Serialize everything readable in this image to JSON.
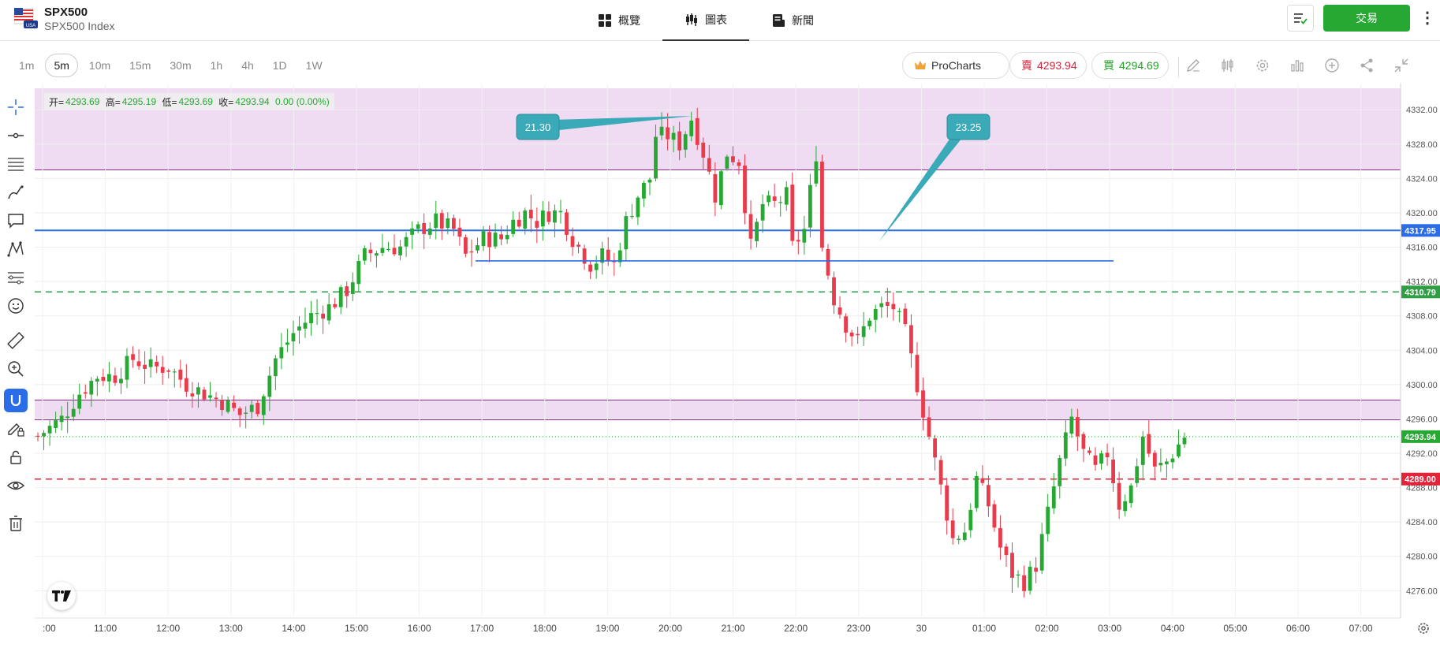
{
  "header": {
    "symbol": "SPX500",
    "symbol_full": "SPX500 Index",
    "logo_badge": "USA",
    "tabs": [
      {
        "label": "概覽",
        "icon": "grid-icon"
      },
      {
        "label": "圖表",
        "icon": "candlestick-icon",
        "active": true
      },
      {
        "label": "新聞",
        "icon": "news-icon"
      }
    ],
    "trade_label": "交易"
  },
  "toolbar": {
    "timeframes": [
      "1m",
      "5m",
      "10m",
      "15m",
      "30m",
      "1h",
      "4h",
      "1D",
      "1W"
    ],
    "active_timeframe": "5m",
    "prochart_label": "ProCharts",
    "sell": {
      "label": "賣",
      "price": "4293.94"
    },
    "buy": {
      "label": "買",
      "price": "4294.69"
    },
    "icons": [
      "pencil-icon",
      "indicators-icon",
      "settings-icon",
      "bar-chart-icon",
      "add-icon",
      "share-icon",
      "collapse-icon"
    ]
  },
  "left_tools": [
    "crosshair-icon",
    "horizontal-line-icon",
    "fib-lines-icon",
    "brush-icon",
    "comment-icon",
    "pattern-icon",
    "projection-icon",
    "emoji-icon",
    "ruler-icon",
    "zoom-in-icon",
    "magnet-icon",
    "lock-draw-icon",
    "lock-icon",
    "eye-icon",
    "trash-icon"
  ],
  "ohlc": {
    "open_label": "开=",
    "open": "4293.69",
    "high_label": "高=",
    "high": "4295.19",
    "low_label": "低=",
    "low": "4293.69",
    "close_label": "收=",
    "close": "4293.94",
    "change": "0.00 (0.00%)"
  },
  "chart_data": {
    "type": "candlestick",
    "x_tick_labels": [
      ":00",
      "11:00",
      "12:00",
      "13:00",
      "14:00",
      "15:00",
      "16:00",
      "17:00",
      "18:00",
      "19:00",
      "20:00",
      "21:00",
      "22:00",
      "23:00",
      "30",
      "01:00",
      "02:00",
      "03:00",
      "04:00",
      "05:00",
      "06:00",
      "07:00"
    ],
    "y_tick_labels": [
      "4332.00",
      "4328.00",
      "4324.00",
      "4320.00",
      "4316.00",
      "4312.00",
      "4308.00",
      "4304.00",
      "4300.00",
      "4296.00",
      "4292.00",
      "4288.00",
      "4284.00",
      "4280.00",
      "4276.00"
    ],
    "ylim": [
      4273,
      4334.5
    ],
    "price_labels": {
      "resistance_blue": "4317.95",
      "support_green": "4310.79",
      "current": "4293.94",
      "stop_red": "4289.00"
    },
    "levels": {
      "resistance_blue": 4317.95,
      "support_green": 4310.79,
      "current": 4293.94,
      "stop_red": 4289.0,
      "horizontal_segment": 4314.4
    },
    "zones": [
      {
        "from": 4325.0,
        "to": 4334.5,
        "color": "#e9d0ee"
      },
      {
        "from": 4295.9,
        "to": 4298.2,
        "color": "#e9d0ee"
      }
    ],
    "callouts": [
      "21.30",
      "23.25"
    ],
    "colors": {
      "up": "#26a833",
      "down": "#e83b4b",
      "blue": "#2b6de8",
      "green": "#2f9e44",
      "red": "#e3233a",
      "callout": "#3aa9b8"
    },
    "anchors": [
      [
        0,
        4294
      ],
      [
        4,
        4296
      ],
      [
        7,
        4299
      ],
      [
        10,
        4301
      ],
      [
        13,
        4301
      ],
      [
        16,
        4303
      ],
      [
        19,
        4302
      ],
      [
        22,
        4302
      ],
      [
        25,
        4300
      ],
      [
        28,
        4299
      ],
      [
        31,
        4298
      ],
      [
        34,
        4296.5
      ],
      [
        37,
        4297.5
      ],
      [
        40,
        4303
      ],
      [
        43,
        4306
      ],
      [
        46,
        4308
      ],
      [
        49,
        4309
      ],
      [
        52,
        4311
      ],
      [
        55,
        4315
      ],
      [
        58,
        4316
      ],
      [
        61,
        4316
      ],
      [
        64,
        4318
      ],
      [
        67,
        4319
      ],
      [
        70,
        4318
      ],
      [
        72,
        4315
      ],
      [
        75,
        4317
      ],
      [
        78,
        4317
      ],
      [
        80,
        4319
      ],
      [
        82,
        4320
      ],
      [
        84,
        4319
      ],
      [
        86,
        4320
      ],
      [
        88,
        4320
      ],
      [
        90,
        4317
      ],
      [
        93,
        4314
      ],
      [
        95,
        4315
      ],
      [
        97,
        4314
      ],
      [
        99,
        4319
      ],
      [
        101,
        4322
      ],
      [
        103,
        4324
      ],
      [
        104,
        4329
      ],
      [
        106,
        4329
      ],
      [
        108,
        4328
      ],
      [
        110,
        4331
      ],
      [
        112,
        4327
      ],
      [
        114,
        4322
      ],
      [
        116,
        4327
      ],
      [
        118,
        4326
      ],
      [
        120,
        4316
      ],
      [
        122,
        4321
      ],
      [
        124,
        4321
      ],
      [
        126,
        4322
      ],
      [
        127,
        4316
      ],
      [
        129,
        4318
      ],
      [
        131,
        4327
      ],
      [
        132,
        4316
      ],
      [
        134,
        4310
      ],
      [
        136,
        4307
      ],
      [
        138,
        4305
      ],
      [
        140,
        4308
      ],
      [
        142,
        4309
      ],
      [
        144,
        4309
      ],
      [
        146,
        4306
      ],
      [
        148,
        4300
      ],
      [
        150,
        4294
      ],
      [
        152,
        4288
      ],
      [
        154,
        4282
      ],
      [
        156,
        4283
      ],
      [
        158,
        4289
      ],
      [
        160,
        4286
      ],
      [
        162,
        4281
      ],
      [
        164,
        4278
      ],
      [
        166,
        4277
      ],
      [
        168,
        4279
      ],
      [
        170,
        4285
      ],
      [
        172,
        4291
      ],
      [
        174,
        4296
      ],
      [
        176,
        4292
      ],
      [
        178,
        4290
      ],
      [
        180,
        4292
      ],
      [
        182,
        4286
      ],
      [
        184,
        4288
      ],
      [
        186,
        4294
      ],
      [
        188,
        4290
      ],
      [
        190,
        4291
      ],
      [
        192,
        4293
      ],
      [
        193,
        4294
      ]
    ]
  }
}
